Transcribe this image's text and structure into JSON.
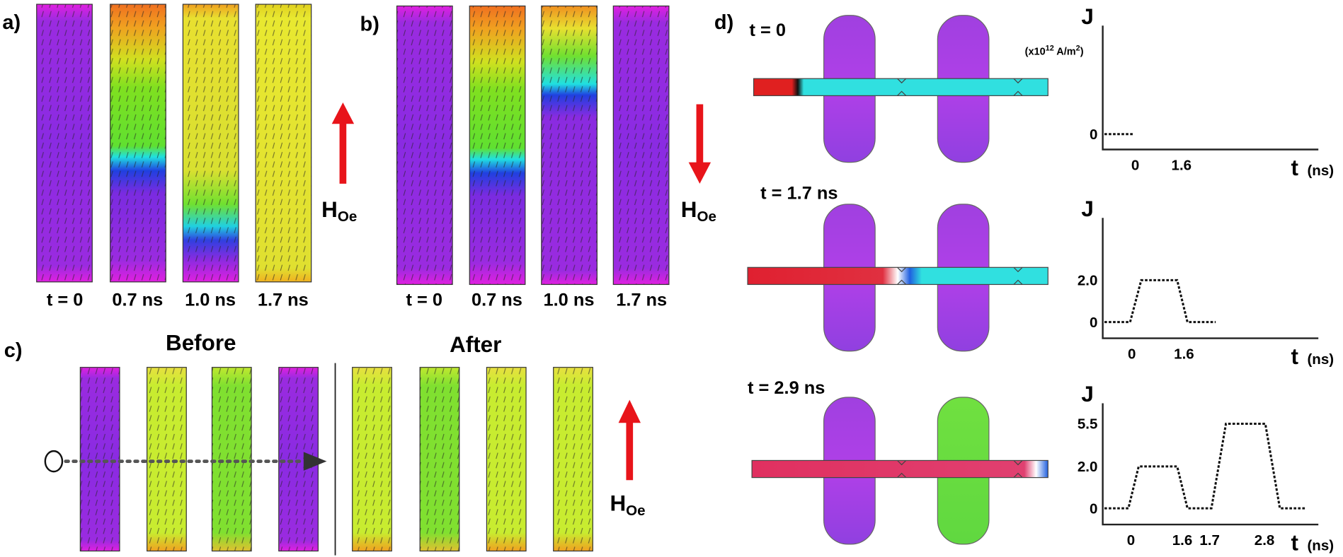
{
  "panel_a": {
    "label": "a)",
    "times": [
      "t = 0",
      "0.7 ns",
      "1.0 ns",
      "1.7 ns"
    ],
    "field": "H",
    "field_sub": "Oe"
  },
  "panel_b": {
    "label": "b)",
    "times": [
      "t = 0",
      "0.7 ns",
      "1.0 ns",
      "1.7 ns"
    ],
    "field": "H",
    "field_sub": "Oe"
  },
  "panel_c": {
    "label": "c)",
    "before": "Before",
    "after": "After",
    "field": "H",
    "field_sub": "Oe"
  },
  "panel_d": {
    "label": "d)",
    "unit": {
      "prefix": "(x10",
      "exponent": "12",
      "middle": " A/m",
      "power": "2",
      "suffix": ")"
    },
    "rows": [
      {
        "time": "t = 0",
        "y_label": "J",
        "yticks": [
          "0"
        ],
        "xticks": [
          "0",
          "1.6"
        ],
        "x_label": "t",
        "x_unit": "(ns)"
      },
      {
        "time": "t = 1.7 ns",
        "y_label": "J",
        "yticks": [
          "2.0",
          "0"
        ],
        "xticks": [
          "0",
          "1.6"
        ],
        "x_label": "t",
        "x_unit": "(ns)"
      },
      {
        "time": "t = 2.9 ns",
        "y_label": "J",
        "yticks": [
          "5.5",
          "2.0",
          "0"
        ],
        "xticks": [
          "0",
          "1.6",
          "1.7",
          "2.8"
        ],
        "x_label": "t",
        "x_unit": "(ns)"
      }
    ]
  }
}
